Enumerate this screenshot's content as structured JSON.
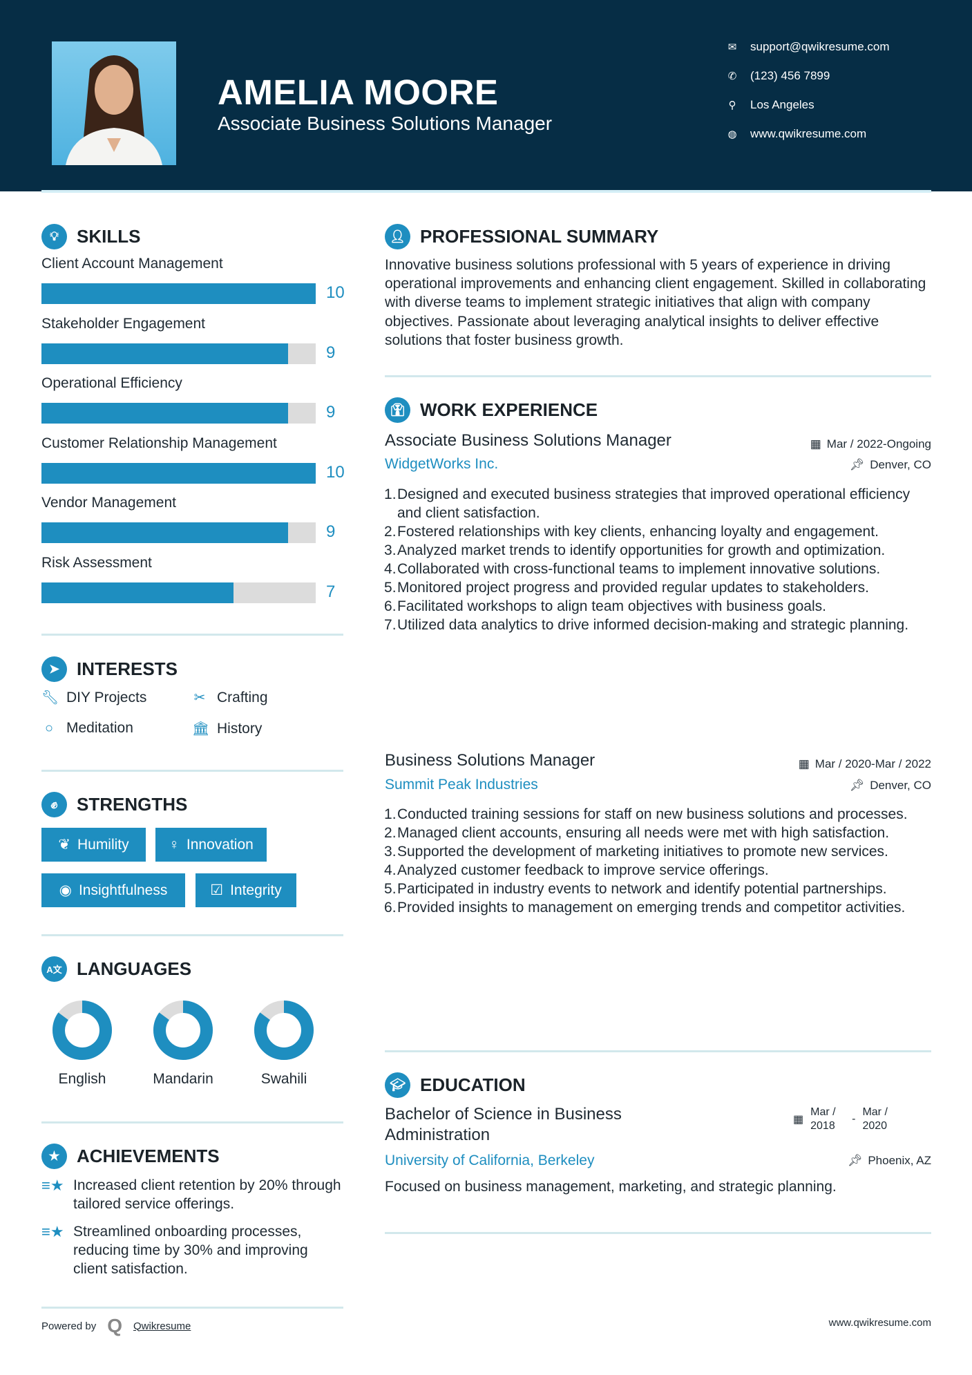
{
  "header": {
    "name": "AMELIA MOORE",
    "title": "Associate Business Solutions Manager",
    "contacts": [
      {
        "icon": "envelope-icon",
        "text": "support@qwikresume.com"
      },
      {
        "icon": "phone-icon",
        "text": "(123) 456 7899"
      },
      {
        "icon": "map-pin-icon",
        "text": "Los Angeles"
      },
      {
        "icon": "globe-icon",
        "text": "www.qwikresume.com"
      }
    ]
  },
  "colors": {
    "navy": "#062d45",
    "accent": "#1e8ec0"
  },
  "skills": {
    "heading": "SKILLS",
    "items": [
      {
        "label": "Client Account Management",
        "level": 10,
        "display": "10"
      },
      {
        "label": "Stakeholder Engagement",
        "level": 9,
        "display": "9"
      },
      {
        "label": "Operational Efficiency",
        "level": 9,
        "display": "9"
      },
      {
        "label": "Customer Relationship Management",
        "level": 10,
        "display": "10"
      },
      {
        "label": "Vendor Management",
        "level": 9,
        "display": "9"
      },
      {
        "label": "Risk Assessment",
        "level": 7,
        "display": "7"
      }
    ],
    "max": 10
  },
  "interests": {
    "heading": "INTERESTS",
    "items": [
      {
        "icon": "wrench-icon",
        "label": "DIY Projects"
      },
      {
        "icon": "scissors-icon",
        "label": "Crafting"
      },
      {
        "icon": "circle-icon",
        "label": "Meditation"
      },
      {
        "icon": "museum-icon",
        "label": "History"
      }
    ]
  },
  "strengths": {
    "heading": "STRENGTHS",
    "items": [
      {
        "icon": "leaf-icon",
        "label": "Humility"
      },
      {
        "icon": "lightbulb-icon",
        "label": "Innovation"
      },
      {
        "icon": "eye-icon",
        "label": "Insightfulness"
      },
      {
        "icon": "checkbox-icon",
        "label": "Integrity"
      }
    ]
  },
  "languages": {
    "heading": "LANGUAGES",
    "items": [
      {
        "label": "English",
        "level_percent": 85
      },
      {
        "label": "Mandarin",
        "level_percent": 85
      },
      {
        "label": "Swahili",
        "level_percent": 85
      }
    ]
  },
  "achievements": {
    "heading": "ACHIEVEMENTS",
    "items": [
      "Increased client retention by 20% through tailored service offerings.",
      "Streamlined onboarding processes, reducing time by 30% and improving client satisfaction."
    ]
  },
  "summary": {
    "heading": "PROFESSIONAL SUMMARY",
    "text": "Innovative business solutions professional with 5 years of experience in driving operational improvements and enhancing client engagement. Skilled in collaborating with diverse teams to implement strategic initiatives that align with company objectives. Passionate about leveraging analytical insights to deliver effective solutions that foster business growth."
  },
  "experience": {
    "heading": "WORK EXPERIENCE",
    "jobs": [
      {
        "title": "Associate Business Solutions Manager",
        "company": "WidgetWorks Inc.",
        "dates": "Mar / 2022-Ongoing",
        "location": "Denver, CO",
        "duties": [
          "Designed and executed business strategies that improved operational efficiency and client satisfaction.",
          "Fostered relationships with key clients, enhancing loyalty and engagement.",
          "Analyzed market trends to identify opportunities for growth and optimization.",
          "Collaborated with cross-functional teams to implement innovative solutions.",
          "Monitored project progress and provided regular updates to stakeholders.",
          "Facilitated workshops to align team objectives with business goals.",
          "Utilized data analytics to drive informed decision-making and strategic planning."
        ]
      },
      {
        "title": "Business Solutions Manager",
        "company": "Summit Peak Industries",
        "dates": "Mar / 2020-Mar / 2022",
        "location": "Denver, CO",
        "duties": [
          "Conducted training sessions for staff on new business solutions and processes.",
          "Managed client accounts, ensuring all needs were met with high satisfaction.",
          "Supported the development of marketing initiatives to promote new services.",
          "Analyzed customer feedback to improve service offerings.",
          "Participated in industry events to network and identify potential partnerships.",
          "Provided insights to management on emerging trends and competitor activities."
        ]
      }
    ]
  },
  "education": {
    "heading": "EDUCATION",
    "degree": "Bachelor of Science in Business Administration",
    "school": "University of California, Berkeley",
    "start": "Mar / 2018",
    "end": "Mar / 2020",
    "location": "Phoenix, AZ",
    "description": "Focused on business management, marketing, and strategic planning."
  },
  "footer": {
    "powered_by": "Powered by",
    "brand": "Qwikresume",
    "website": "www.qwikresume.com"
  }
}
